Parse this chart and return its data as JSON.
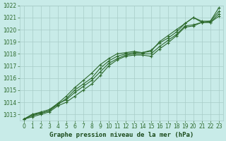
{
  "title": "Graphe pression niveau de la mer (hPa)",
  "x": [
    0,
    1,
    2,
    3,
    4,
    5,
    6,
    7,
    8,
    9,
    10,
    11,
    12,
    13,
    14,
    15,
    16,
    17,
    18,
    19,
    20,
    21,
    22,
    23
  ],
  "line1": [
    1012.6,
    1013.0,
    1013.1,
    1013.3,
    1013.8,
    1014.3,
    1015.0,
    1015.5,
    1016.0,
    1016.8,
    1017.4,
    1017.8,
    1018.0,
    1018.1,
    1018.1,
    1018.3,
    1018.9,
    1019.3,
    1019.8,
    1020.5,
    1021.0,
    1020.7,
    1020.7,
    1021.8
  ],
  "line2": [
    1012.6,
    1013.0,
    1013.2,
    1013.4,
    1013.9,
    1014.5,
    1015.2,
    1015.8,
    1016.4,
    1017.1,
    1017.6,
    1018.0,
    1018.1,
    1018.2,
    1018.1,
    1018.2,
    1019.0,
    1019.5,
    1020.0,
    1020.5,
    1021.0,
    1020.6,
    1020.7,
    1021.5
  ],
  "line3": [
    1012.6,
    1012.9,
    1013.1,
    1013.3,
    1013.9,
    1014.2,
    1014.8,
    1015.3,
    1015.8,
    1016.5,
    1017.2,
    1017.6,
    1017.9,
    1018.0,
    1018.0,
    1018.0,
    1018.6,
    1019.1,
    1019.6,
    1020.3,
    1020.4,
    1020.6,
    1020.6,
    1021.3
  ],
  "line4": [
    1012.6,
    1012.8,
    1013.0,
    1013.2,
    1013.7,
    1014.0,
    1014.5,
    1015.0,
    1015.5,
    1016.2,
    1017.0,
    1017.5,
    1017.8,
    1017.9,
    1017.9,
    1017.8,
    1018.4,
    1018.9,
    1019.5,
    1020.2,
    1020.3,
    1020.6,
    1020.6,
    1021.1
  ],
  "line_color": "#2d6a2d",
  "bg_color": "#c8ebe8",
  "grid_color": "#a8ccc8",
  "title_color": "#1a4a1a",
  "ylim": [
    1012.5,
    1022.0
  ],
  "xlim": [
    -0.5,
    23.5
  ],
  "yticks": [
    1013,
    1014,
    1015,
    1016,
    1017,
    1018,
    1019,
    1020,
    1021,
    1022
  ],
  "xticks": [
    0,
    1,
    2,
    3,
    4,
    5,
    6,
    7,
    8,
    9,
    10,
    11,
    12,
    13,
    14,
    15,
    16,
    17,
    18,
    19,
    20,
    21,
    22,
    23
  ],
  "marker_size": 3,
  "linewidth": 0.8,
  "tick_fontsize": 5.5,
  "title_fontsize": 6.5
}
